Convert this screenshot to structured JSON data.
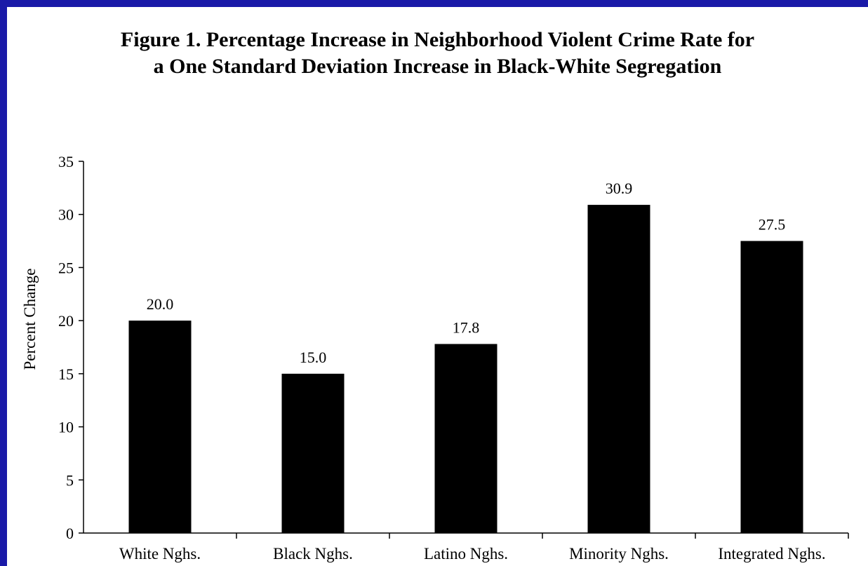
{
  "chart_data": {
    "type": "bar",
    "title_line1": "Figure 1.  Percentage Increase in Neighborhood Violent Crime Rate for",
    "title_line2": "a One Standard Deviation Increase in Black-White Segregation",
    "xlabel": "",
    "ylabel": "Percent Change",
    "ylim": [
      0,
      35
    ],
    "yticks": [
      0,
      5,
      10,
      15,
      20,
      25,
      30,
      35
    ],
    "categories": [
      "White Nghs.",
      "Black Nghs.",
      "Latino Nghs.",
      "Minority Nghs.",
      "Integrated Nghs."
    ],
    "values": [
      20.0,
      15.0,
      17.8,
      30.9,
      27.5
    ],
    "data_labels": [
      "20.0",
      "15.0",
      "17.8",
      "30.9",
      "27.5"
    ],
    "bar_color": "#000000",
    "grid": false,
    "legend": "none"
  },
  "colors": {
    "background_border": "#1a1aa8",
    "plot_background": "#ffffff"
  }
}
